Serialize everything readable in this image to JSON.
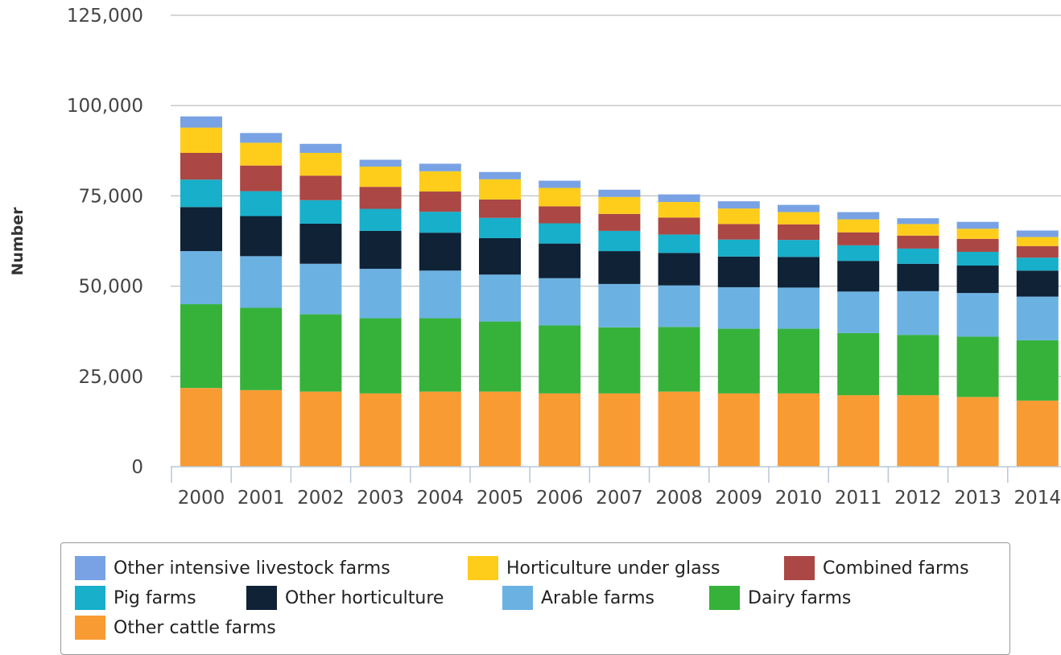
{
  "chart_data": {
    "type": "bar",
    "stacked": true,
    "title": "",
    "xlabel": "",
    "ylabel": "Number",
    "ylim": [
      0,
      125000
    ],
    "yticks": [
      0,
      25000,
      50000,
      75000,
      100000,
      125000
    ],
    "ytick_labels": [
      "0",
      "25,000",
      "50,000",
      "75,000",
      "100,000",
      "125,000"
    ],
    "grid": true,
    "legend_position": "bottom",
    "categories": [
      "2000",
      "2001",
      "2002",
      "2003",
      "2004",
      "2005",
      "2006",
      "2007",
      "2008",
      "2009",
      "2010",
      "2011",
      "2012",
      "2013",
      "2014"
    ],
    "series": [
      {
        "name": "Other cattle farms",
        "color": "#f99b33",
        "values": [
          21800,
          21200,
          20800,
          20300,
          20800,
          20800,
          20300,
          20300,
          20800,
          20300,
          20300,
          19800,
          19800,
          19300,
          18300
        ]
      },
      {
        "name": "Dairy farms",
        "color": "#36b23a",
        "values": [
          23200,
          22800,
          21400,
          20800,
          20300,
          19400,
          18800,
          18300,
          17900,
          17900,
          17900,
          17200,
          16700,
          16700,
          16700
        ]
      },
      {
        "name": "Arable farms",
        "color": "#6bb2e2",
        "values": [
          14700,
          14300,
          14000,
          13700,
          13200,
          13000,
          13100,
          12000,
          11500,
          11500,
          11400,
          11500,
          12100,
          12100,
          12100
        ]
      },
      {
        "name": "Other horticulture",
        "color": "#0f2236",
        "values": [
          12200,
          11100,
          11100,
          10500,
          10500,
          10100,
          9600,
          9100,
          9000,
          8500,
          8500,
          8500,
          7600,
          7600,
          7200
        ]
      },
      {
        "name": "Pig farms",
        "color": "#17afca",
        "values": [
          7600,
          6900,
          6500,
          6100,
          5800,
          5600,
          5600,
          5600,
          5100,
          4700,
          4700,
          4300,
          4200,
          3800,
          3600
        ]
      },
      {
        "name": "Combined farms",
        "color": "#ab4745",
        "values": [
          7400,
          7100,
          6800,
          6100,
          5600,
          5100,
          4700,
          4700,
          4700,
          4300,
          4300,
          3600,
          3600,
          3600,
          3200
        ]
      },
      {
        "name": "Horticulture under glass",
        "color": "#fecd1b",
        "values": [
          7000,
          6300,
          6300,
          5600,
          5600,
          5600,
          5100,
          4700,
          4300,
          4300,
          3400,
          3600,
          3200,
          2800,
          2500
        ]
      },
      {
        "name": "Other intensive livestock farms",
        "color": "#78a2e4",
        "values": [
          3100,
          2700,
          2500,
          1900,
          2100,
          2000,
          2000,
          2000,
          2100,
          2000,
          2000,
          2000,
          1600,
          1900,
          1800
        ]
      }
    ]
  },
  "legend": {
    "order": [
      "Other intensive livestock farms",
      "Horticulture under glass",
      "Combined farms",
      "Pig farms",
      "Other horticulture",
      "Arable farms",
      "Dairy farms",
      "Other cattle farms"
    ]
  }
}
